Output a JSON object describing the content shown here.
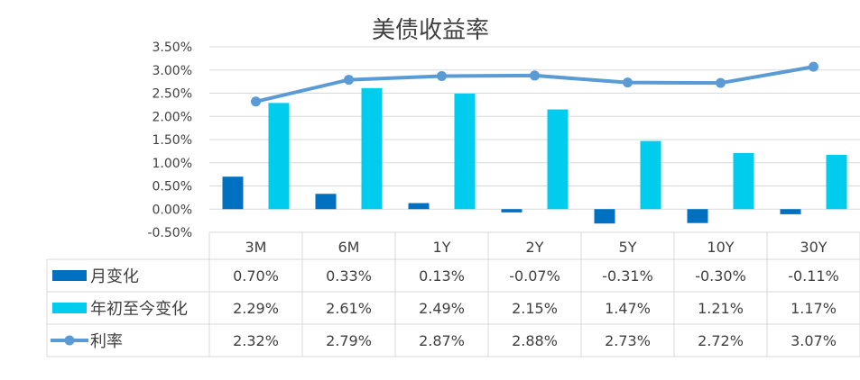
{
  "chart_data": {
    "type": "bar",
    "title": "美债收益率",
    "categories": [
      "3M",
      "6M",
      "1Y",
      "2Y",
      "5Y",
      "10Y",
      "30Y"
    ],
    "ylim": [
      -0.5,
      3.5
    ],
    "yticks": [
      "3.50%",
      "3.00%",
      "2.50%",
      "2.00%",
      "1.50%",
      "1.00%",
      "0.50%",
      "0.00%",
      "-0.50%"
    ],
    "ytick_values": [
      3.5,
      3.0,
      2.5,
      2.0,
      1.5,
      1.0,
      0.5,
      0.0,
      -0.5
    ],
    "grid": true,
    "legend_placement": "table-left",
    "series": [
      {
        "name": "月变化",
        "kind": "bar",
        "color": "#0070C0",
        "values": [
          0.7,
          0.33,
          0.13,
          -0.07,
          -0.31,
          -0.3,
          -0.11
        ],
        "labels": [
          "0.70%",
          "0.33%",
          "0.13%",
          "-0.07%",
          "-0.31%",
          "-0.30%",
          "-0.11%"
        ]
      },
      {
        "name": "年初至今变化",
        "kind": "bar",
        "color": "#00CCEE",
        "values": [
          2.29,
          2.61,
          2.49,
          2.15,
          1.47,
          1.21,
          1.17
        ],
        "labels": [
          "2.29%",
          "2.61%",
          "2.49%",
          "2.15%",
          "1.47%",
          "1.21%",
          "1.17%"
        ]
      },
      {
        "name": "利率",
        "kind": "line",
        "color": "#5B9BD5",
        "values": [
          2.32,
          2.79,
          2.87,
          2.88,
          2.73,
          2.72,
          3.07
        ],
        "labels": [
          "2.32%",
          "2.79%",
          "2.87%",
          "2.88%",
          "2.73%",
          "2.72%",
          "3.07%"
        ]
      }
    ]
  }
}
